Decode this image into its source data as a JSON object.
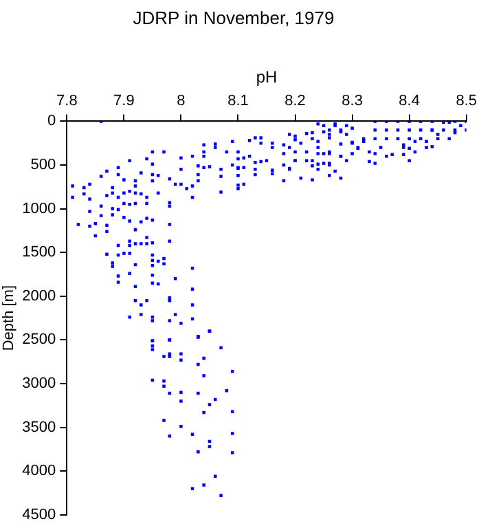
{
  "chart_data": {
    "type": "scatter",
    "title": "JDRP in November, 1979",
    "xlabel": "pH",
    "ylabel": "Depth [m]",
    "xlim": [
      7.8,
      8.5
    ],
    "xticks": [
      7.8,
      7.9,
      8,
      8.1,
      8.2,
      8.3,
      8.4,
      8.5
    ],
    "ylim": [
      4500,
      0
    ],
    "yticks": [
      0,
      500,
      1000,
      1500,
      2000,
      2500,
      3000,
      3500,
      4000,
      4500
    ],
    "grid": false,
    "marker": "square",
    "color": "#0000ff",
    "x": [
      7.86,
      8.34,
      8.36,
      8.38,
      8.4,
      8.42,
      8.44,
      8.46,
      8.48,
      8.5,
      8.34,
      8.36,
      8.38,
      8.4,
      8.42,
      8.44,
      8.46,
      8.48,
      8.5,
      8.32,
      8.34,
      8.36,
      8.38,
      8.4,
      8.42,
      8.45,
      8.47,
      8.29,
      8.3,
      8.31,
      8.33,
      8.35,
      8.39,
      8.41,
      8.43,
      8.36,
      8.4,
      8.25,
      8.27,
      8.28,
      8.26,
      8.23,
      8.21,
      8.19,
      8.16,
      8.14,
      8.22,
      8.24,
      8.26,
      8.28,
      8.29,
      8.23,
      8.2,
      8.18,
      8.15,
      8.12,
      8.1,
      8.06,
      8.04,
      8.02,
      8.09,
      8.07,
      8.13,
      8.16,
      8.19,
      8.24,
      8.28,
      8.26,
      8.21,
      8.04,
      8.06,
      8.09,
      8.12,
      8.08,
      8.04,
      8,
      7.95,
      7.97,
      7.94,
      7.91,
      7.89,
      7.87,
      7.86,
      7.81,
      7.81,
      7.83,
      7.84,
      7.83,
      7.84,
      7.82,
      7.84,
      7.85,
      7.85,
      7.87,
      7.87,
      7.86,
      7.86,
      7.87,
      7.84,
      7.89,
      7.9,
      7.88,
      7.88,
      7.89,
      7.88,
      7.88,
      7.89,
      7.9,
      7.9,
      7.9,
      7.91,
      7.91,
      7.92,
      7.92,
      7.93,
      7.95,
      7.95,
      7.96,
      7.95,
      7.96,
      7.94,
      7.94,
      7.93,
      7.92,
      7.91,
      7.92,
      7.94,
      7.95,
      7.93,
      7.92,
      7.91,
      7.91,
      7.92,
      7.93,
      7.94,
      7.95,
      7.94,
      7.89,
      7.87,
      7.89,
      7.88,
      7.88,
      7.9,
      7.91,
      7.92,
      7.91,
      7.89,
      7.89,
      7.92,
      7.92,
      7.93,
      7.93,
      7.94,
      7.95,
      7.95,
      7.95,
      7.95,
      7.95,
      7.96,
      7.96,
      7.97,
      7.97,
      7.98,
      7.98,
      7.98,
      7.98,
      7.98,
      7.99,
      8,
      8,
      8.01,
      8.02,
      8.02,
      8.03,
      8.03,
      8.03,
      8.04,
      8.05,
      8.07,
      8.07,
      8.1,
      8.1,
      8.11,
      8.1,
      8.1,
      8.11,
      8.02,
      7.99,
      7.98,
      7.98,
      7.99,
      8,
      7.98,
      8.02,
      8.02,
      8.02,
      8.03,
      8.05,
      7.95,
      7.95,
      7.95,
      7.98,
      7.91,
      8.13,
      8.14,
      8.16,
      8.18,
      8.19,
      8.2,
      8.2,
      8.2,
      8.18,
      8.2,
      8.19,
      8.18,
      8.22,
      8.23,
      8.24,
      8.25,
      8.26,
      8.27,
      8.28,
      8.29,
      8.3,
      8.24,
      8.26,
      8.28,
      8.3,
      8.24,
      8.25,
      8.26,
      8.28,
      8.22,
      8.23,
      8.24,
      8.25,
      8.26,
      8.27,
      8.26,
      8.23,
      8.1,
      8.11,
      8.13,
      8.14,
      8.13,
      8.16,
      8.1,
      8.3,
      8.31,
      8.32,
      8.33,
      8.34,
      8.34,
      8.37,
      8.39,
      8.4,
      8.39,
      8.41,
      8.43,
      8.44,
      8.44,
      8.45,
      8.46,
      8.47,
      8.48,
      8.49,
      7.95,
      7.98,
      8.03,
      8.05,
      7.95,
      7.95,
      7.98,
      7.97,
      7.98,
      8,
      8,
      8.04,
      8.07,
      8.03,
      8.04,
      8.09,
      7.95,
      7.97,
      7.97,
      7.98,
      8,
      8.03,
      8,
      8.05,
      8.06,
      8.08,
      8.04,
      8.09,
      7.97,
      8,
      7.98,
      8.02,
      8.05,
      8.05,
      8.09,
      8.03,
      8.09,
      8.06,
      8.04,
      8.02,
      8.07
    ],
    "values": [
      0,
      0,
      0,
      0,
      0,
      0,
      0,
      0,
      0,
      0,
      100,
      100,
      100,
      100,
      100,
      100,
      100,
      100,
      100,
      200,
      200,
      200,
      200,
      200,
      200,
      200,
      200,
      150,
      250,
      300,
      350,
      300,
      300,
      350,
      300,
      400,
      450,
      50,
      50,
      100,
      150,
      200,
      250,
      300,
      300,
      250,
      350,
      300,
      350,
      400,
      450,
      450,
      450,
      500,
      450,
      400,
      350,
      300,
      350,
      400,
      500,
      550,
      550,
      600,
      550,
      550,
      650,
      500,
      650,
      270,
      260,
      230,
      220,
      350,
      400,
      420,
      350,
      350,
      430,
      450,
      530,
      570,
      630,
      740,
      870,
      760,
      720,
      830,
      890,
      1180,
      1200,
      1170,
      1310,
      1190,
      1260,
      1080,
      970,
      850,
      1030,
      610,
      670,
      760,
      820,
      870,
      1000,
      1070,
      1010,
      820,
      940,
      1100,
      1140,
      950,
      680,
      740,
      590,
      490,
      610,
      620,
      680,
      820,
      870,
      940,
      830,
      820,
      800,
      940,
      1110,
      1130,
      1150,
      1240,
      1370,
      1420,
      1400,
      1400,
      1400,
      1390,
      1330,
      1420,
      1520,
      1530,
      1620,
      1660,
      1510,
      1510,
      1640,
      1740,
      1770,
      1840,
      1890,
      2050,
      2100,
      2210,
      2050,
      1530,
      1590,
      1650,
      1760,
      1850,
      1600,
      1860,
      1570,
      1630,
      1370,
      1180,
      930,
      970,
      660,
      720,
      720,
      550,
      770,
      870,
      740,
      680,
      610,
      510,
      530,
      520,
      630,
      810,
      430,
      530,
      530,
      620,
      770,
      720,
      1680,
      1800,
      2020,
      2050,
      2210,
      2310,
      2280,
      1920,
      2100,
      2260,
      2460,
      2400,
      2240,
      2280,
      2510,
      2500,
      2240,
      190,
      190,
      250,
      270,
      150,
      170,
      210,
      350,
      370,
      450,
      540,
      680,
      140,
      130,
      30,
      120,
      100,
      30,
      120,
      50,
      80,
      230,
      190,
      260,
      240,
      370,
      370,
      370,
      400,
      450,
      510,
      490,
      480,
      480,
      570,
      620,
      670,
      540,
      420,
      470,
      460,
      610,
      560,
      730,
      370,
      310,
      230,
      460,
      480,
      370,
      380,
      380,
      310,
      270,
      230,
      230,
      290,
      100,
      150,
      10,
      10,
      130,
      50,
      2510,
      2500,
      2470,
      2400,
      2570,
      2610,
      2660,
      2690,
      2690,
      2660,
      2730,
      2710,
      2590,
      2780,
      2910,
      2860,
      2960,
      2970,
      3030,
      3110,
      3100,
      3110,
      3200,
      3240,
      3180,
      3080,
      3330,
      3320,
      3420,
      3490,
      3600,
      3580,
      3660,
      3720,
      3570,
      3780,
      3790,
      4060,
      4160,
      4200,
      4280
    ]
  }
}
